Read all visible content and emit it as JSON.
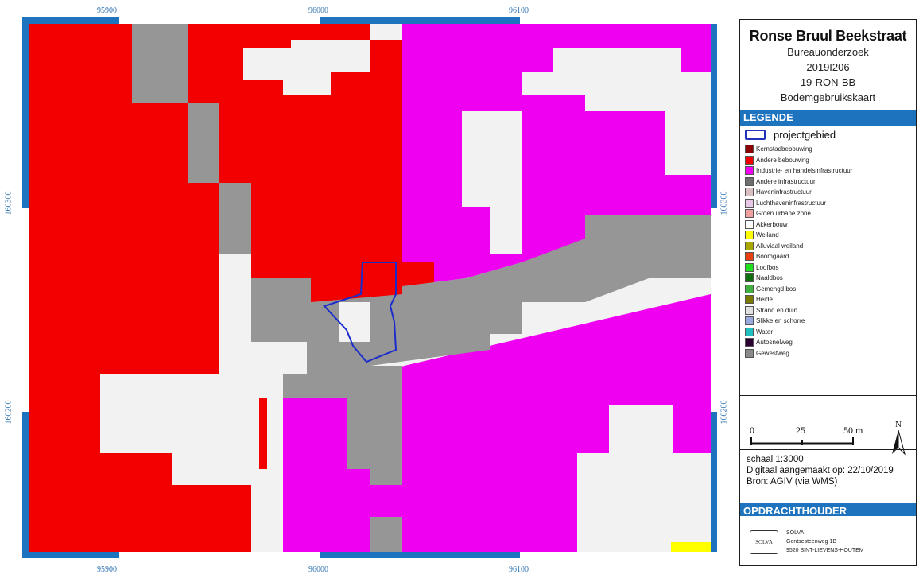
{
  "map": {
    "grid_labels": {
      "x_top": [
        "95900",
        "96000",
        "96100"
      ],
      "x_bottom": [
        "95900",
        "96000",
        "96100"
      ],
      "y_left": [
        "160300",
        "160200"
      ],
      "y_right": [
        "160300",
        "160200"
      ]
    },
    "colors": {
      "red": "#f20000",
      "magenta": "#f000f0",
      "gray": "#969696",
      "white": "#f2f2f2",
      "yellow": "#ffff00",
      "project_outline": "#1a2ccc",
      "frame": "#1e73be"
    }
  },
  "title_block": {
    "title": "Ronse Bruul Beekstraat",
    "line1": "Bureauonderzoek",
    "line2": "2019I206",
    "line3": "19-RON-BB",
    "line4": "Bodemgebruikskaart"
  },
  "legend": {
    "heading": "LEGENDE",
    "project_label": "projectgebied",
    "items": [
      {
        "label": "Kernstadbebouwing",
        "color": "#8b0000"
      },
      {
        "label": "Andere bebouwing",
        "color": "#f20000"
      },
      {
        "label": "Industrie- en handelsinfrastructuur",
        "color": "#f000f0"
      },
      {
        "label": "Andere infrastructuur",
        "color": "#6e6e6e"
      },
      {
        "label": "Haveninfrastructuur",
        "color": "#d8c0c0"
      },
      {
        "label": "Luchthaveninfrastructuur",
        "color": "#e8c8e8"
      },
      {
        "label": "Groen urbane zone",
        "color": "#f0a0a0"
      },
      {
        "label": "Akkerbouw",
        "color": "#ffffff"
      },
      {
        "label": "Weiland",
        "color": "#ffff00"
      },
      {
        "label": "Alluviaal weiland",
        "color": "#a8a800"
      },
      {
        "label": "Boomgaard",
        "color": "#e84010"
      },
      {
        "label": "Loofbos",
        "color": "#20e020"
      },
      {
        "label": "Naaldbos",
        "color": "#107010"
      },
      {
        "label": "Gemengd bos",
        "color": "#40b040"
      },
      {
        "label": "Heide",
        "color": "#7a7a00"
      },
      {
        "label": "Strand en duin",
        "color": "#e0e0e0"
      },
      {
        "label": "Slikke en schorre",
        "color": "#9aa8e0"
      },
      {
        "label": "Water",
        "color": "#20c0c0"
      },
      {
        "label": "Autosnelweg",
        "color": "#2a0030"
      },
      {
        "label": "Gewestweg",
        "color": "#8a8a8a"
      }
    ]
  },
  "scale": {
    "tick_0": "0",
    "tick_25": "25",
    "tick_50": "50 m",
    "north": "N"
  },
  "meta": {
    "scale_text": "schaal  1:3000",
    "made_on": "Digitaal aangemaakt op: 22/10/2019",
    "source": "Bron: AGIV (via WMS)"
  },
  "client": {
    "heading": "OPDRACHTHOUDER",
    "logo_text": "SOLVA",
    "name": "SOLVA",
    "address": "Gentsesteenweg 1B",
    "city": "9520 SINT-LIEVENS-HOUTEM"
  }
}
